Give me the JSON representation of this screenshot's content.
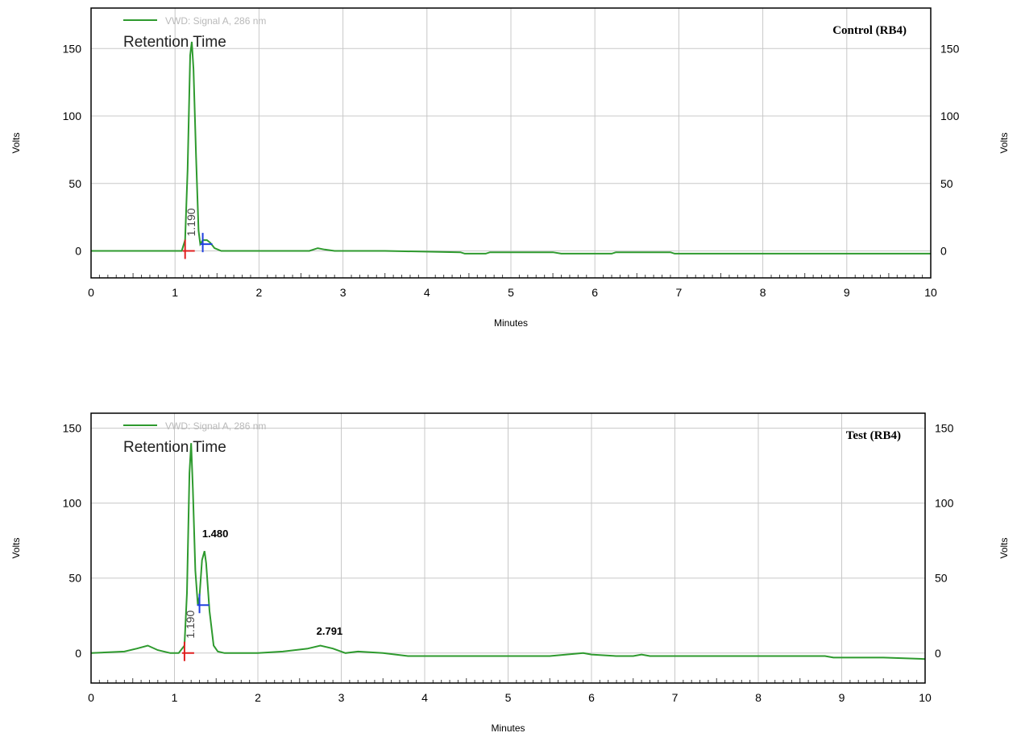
{
  "colors": {
    "signal": "#2e9a2e",
    "grid": "#c8c8c8",
    "frame": "#000000",
    "legend_text": "#b9b9b9",
    "marker_start": "#e02020",
    "marker_end": "#2040e0"
  },
  "chart_data": [
    {
      "type": "line",
      "label": "Control (RB4)",
      "legend": "VWD: Signal A, 286 nm",
      "subtitle": "Retention Time",
      "xlabel": "Minutes",
      "ylabel": "Volts",
      "ylabel_right": "Volts",
      "xlim": [
        0,
        10
      ],
      "ylim": [
        -20,
        180
      ],
      "xticks": [
        0,
        1,
        2,
        3,
        4,
        5,
        6,
        7,
        8,
        9,
        10
      ],
      "yticks": [
        0,
        50,
        100,
        150
      ],
      "grid": true,
      "legend_position": "top-left",
      "series": [
        {
          "x": [
            0,
            0.5,
            1.0,
            1.08,
            1.12,
            1.15,
            1.18,
            1.2,
            1.22,
            1.25,
            1.28,
            1.3,
            1.33,
            1.38,
            1.42,
            1.47,
            1.55,
            1.7,
            2.0,
            2.6,
            2.7,
            2.78,
            2.9,
            3.5,
            4.4,
            4.45,
            4.7,
            4.75,
            5.5,
            5.6,
            6.2,
            6.25,
            6.9,
            6.95,
            8.0,
            9.0,
            10.0
          ],
          "y": [
            0,
            0,
            0,
            0,
            8,
            60,
            145,
            155,
            135,
            70,
            15,
            5,
            8,
            8,
            6,
            2,
            0,
            0,
            0,
            0,
            2,
            1,
            0,
            0,
            -1,
            -2,
            -2,
            -1,
            -1,
            -2,
            -2,
            -1,
            -1,
            -2,
            -2,
            -2,
            -2
          ]
        }
      ],
      "annotations": [
        {
          "text": "1.190",
          "x": 1.19,
          "orientation": "vertical"
        }
      ],
      "integration_marks": [
        {
          "kind": "start",
          "x": 1.12,
          "y": 0
        },
        {
          "kind": "end",
          "x": 1.33,
          "y": 5
        }
      ]
    },
    {
      "type": "line",
      "label": "Test (RB4)",
      "legend": "VWD: Signal A, 286 nm",
      "subtitle": "Retention Time",
      "xlabel": "Minutes",
      "ylabel": "Volts",
      "ylabel_right": "Volts",
      "xlim": [
        0,
        10
      ],
      "ylim": [
        -20,
        160
      ],
      "xticks": [
        0,
        1,
        2,
        3,
        4,
        5,
        6,
        7,
        8,
        9,
        10
      ],
      "yticks": [
        0,
        50,
        100,
        150
      ],
      "grid": true,
      "legend_position": "top-left",
      "series": [
        {
          "x": [
            0,
            0.4,
            0.55,
            0.68,
            0.8,
            0.95,
            1.05,
            1.12,
            1.15,
            1.18,
            1.2,
            1.22,
            1.25,
            1.28,
            1.3,
            1.33,
            1.36,
            1.38,
            1.42,
            1.47,
            1.52,
            1.6,
            2.0,
            2.3,
            2.6,
            2.75,
            2.9,
            3.05,
            3.2,
            3.5,
            3.8,
            4.5,
            5.5,
            5.7,
            5.9,
            6.0,
            6.3,
            6.5,
            6.6,
            6.7,
            7.0,
            8.0,
            8.8,
            8.9,
            9.5,
            10.0
          ],
          "y": [
            0,
            1,
            3,
            5,
            2,
            0,
            0,
            5,
            40,
            120,
            140,
            110,
            55,
            32,
            38,
            62,
            68,
            60,
            28,
            5,
            1,
            0,
            0,
            1,
            3,
            5,
            3,
            0,
            1,
            0,
            -2,
            -2,
            -2,
            -1,
            0,
            -1,
            -2,
            -2,
            -1,
            -2,
            -2,
            -2,
            -2,
            -3,
            -3,
            -4
          ]
        }
      ],
      "annotations": [
        {
          "text": "1.190",
          "x": 1.19,
          "orientation": "vertical"
        },
        {
          "text": "1.480",
          "x": 1.38,
          "y": 73,
          "orientation": "horizontal"
        },
        {
          "text": "2.791",
          "x": 2.75,
          "y": 8,
          "orientation": "horizontal"
        }
      ],
      "integration_marks": [
        {
          "kind": "start",
          "x": 1.12,
          "y": 0
        },
        {
          "kind": "end",
          "x": 1.3,
          "y": 32
        }
      ]
    }
  ]
}
